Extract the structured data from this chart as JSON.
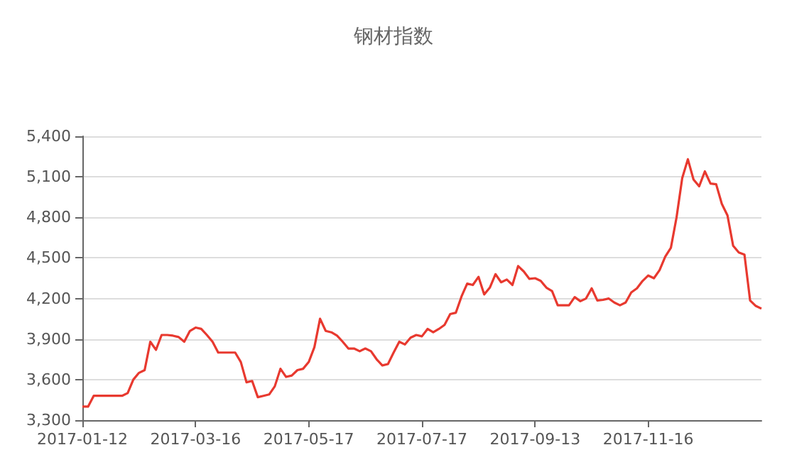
{
  "chart_data": {
    "type": "line",
    "title": "钢材指数",
    "categories": [
      "2017-01-12",
      null,
      null,
      null,
      null,
      null,
      null,
      null,
      null,
      null,
      null,
      null,
      null,
      null,
      null,
      null,
      null,
      null,
      null,
      null,
      "2017-03-16",
      null,
      null,
      null,
      null,
      null,
      null,
      null,
      null,
      null,
      null,
      null,
      null,
      null,
      null,
      null,
      null,
      null,
      null,
      null,
      "2017-05-17",
      null,
      null,
      null,
      null,
      null,
      null,
      null,
      null,
      null,
      null,
      null,
      null,
      null,
      null,
      null,
      null,
      null,
      null,
      null,
      "2017-07-17",
      null,
      null,
      null,
      null,
      null,
      null,
      null,
      null,
      null,
      null,
      null,
      null,
      null,
      null,
      null,
      null,
      null,
      null,
      null,
      "2017-09-13",
      null,
      null,
      null,
      null,
      null,
      null,
      null,
      null,
      null,
      null,
      null,
      null,
      null,
      null,
      null,
      null,
      null,
      null,
      null,
      "2017-11-16",
      null,
      null,
      null,
      null,
      null,
      null,
      null,
      null,
      null,
      null,
      null,
      null,
      null,
      null,
      null,
      null,
      null,
      null,
      null,
      null
    ],
    "series": [
      {
        "color": "#e8392f",
        "values": [
          3400,
          3400,
          3480,
          3480,
          3480,
          3480,
          3480,
          3480,
          3500,
          3600,
          3650,
          3670,
          3880,
          3820,
          3930,
          3930,
          3925,
          3915,
          3880,
          3960,
          3985,
          3975,
          3930,
          3880,
          3800,
          3800,
          3800,
          3800,
          3730,
          3580,
          3590,
          3470,
          3480,
          3490,
          3550,
          3680,
          3620,
          3630,
          3670,
          3680,
          3730,
          3840,
          4050,
          3960,
          3950,
          3925,
          3880,
          3830,
          3830,
          3810,
          3830,
          3810,
          3750,
          3705,
          3715,
          3800,
          3880,
          3860,
          3910,
          3930,
          3920,
          3975,
          3950,
          3975,
          4005,
          4085,
          4095,
          4215,
          4310,
          4300,
          4360,
          4230,
          4280,
          4380,
          4320,
          4340,
          4300,
          4440,
          4400,
          4345,
          4350,
          4330,
          4280,
          4255,
          4150,
          4150,
          4150,
          4210,
          4180,
          4200,
          4275,
          4185,
          4190,
          4200,
          4170,
          4150,
          4170,
          4245,
          4275,
          4330,
          4370,
          4350,
          4410,
          4510,
          4575,
          4800,
          5090,
          5230,
          5080,
          5030,
          5140,
          5050,
          5045,
          4900,
          4815,
          4590,
          4540,
          4525,
          4185,
          4145,
          4125
        ]
      }
    ],
    "ylim": [
      3300,
      5400
    ],
    "yticks": [
      {
        "value": 3300,
        "label": "3,300"
      },
      {
        "value": 3600,
        "label": "3,600"
      },
      {
        "value": 3900,
        "label": "3,900"
      },
      {
        "value": 4200,
        "label": "4,200"
      },
      {
        "value": 4500,
        "label": "4,500"
      },
      {
        "value": 4800,
        "label": "4,800"
      },
      {
        "value": 5100,
        "label": "5,100"
      },
      {
        "value": 5400,
        "label": "5,400"
      }
    ],
    "grid": "y",
    "marker": "none",
    "line_style": "solid"
  }
}
